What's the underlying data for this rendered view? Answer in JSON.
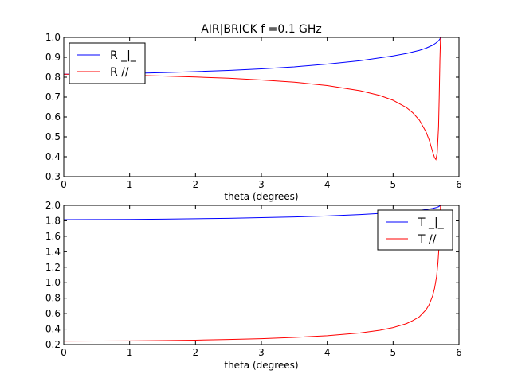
{
  "chart_data": [
    {
      "type": "line",
      "title": "AIR|BRICK f =0.1 GHz",
      "xlabel": "theta (degrees)",
      "ylabel": "",
      "xlim": [
        0,
        6
      ],
      "ylim": [
        0.3,
        1.0
      ],
      "xticks": [
        "0",
        "1",
        "2",
        "3",
        "4",
        "5",
        "6"
      ],
      "yticks": [
        "0.3",
        "0.4",
        "0.5",
        "0.6",
        "0.7",
        "0.8",
        "0.9",
        "1.0"
      ],
      "grid": false,
      "legend": "upper-left",
      "series": [
        {
          "name": "R _|_",
          "color": "#0000ff",
          "x": [
            0,
            0.5,
            1.0,
            1.5,
            2.0,
            2.5,
            3.0,
            3.5,
            4.0,
            4.5,
            5.0,
            5.2,
            5.4,
            5.5,
            5.6,
            5.65,
            5.69,
            5.71,
            5.72
          ],
          "y": [
            0.815,
            0.817,
            0.819,
            0.823,
            0.828,
            0.834,
            0.842,
            0.852,
            0.866,
            0.883,
            0.907,
            0.919,
            0.935,
            0.946,
            0.961,
            0.972,
            0.983,
            0.992,
            1.0
          ]
        },
        {
          "name": "R //",
          "color": "#ff0000",
          "x": [
            0,
            0.5,
            1.0,
            1.5,
            2.0,
            2.5,
            3.0,
            3.5,
            4.0,
            4.5,
            4.8,
            5.0,
            5.2,
            5.3,
            5.4,
            5.5,
            5.55,
            5.6,
            5.63,
            5.65,
            5.67,
            5.69,
            5.7,
            5.71,
            5.72
          ],
          "y": [
            0.815,
            0.813,
            0.81,
            0.806,
            0.801,
            0.795,
            0.786,
            0.775,
            0.758,
            0.732,
            0.708,
            0.684,
            0.648,
            0.621,
            0.584,
            0.525,
            0.482,
            0.425,
            0.395,
            0.386,
            0.42,
            0.55,
            0.7,
            0.88,
            1.0
          ]
        }
      ]
    },
    {
      "type": "line",
      "title": "",
      "xlabel": "theta (degrees)",
      "ylabel": "",
      "xlim": [
        0,
        6
      ],
      "ylim": [
        0.2,
        2.0
      ],
      "xticks": [
        "0",
        "1",
        "2",
        "3",
        "4",
        "5",
        "6"
      ],
      "yticks": [
        "0.2",
        "0.4",
        "0.6",
        "0.8",
        "1.0",
        "1.2",
        "1.4",
        "1.6",
        "1.8",
        "2.0"
      ],
      "grid": false,
      "legend": "upper-right",
      "series": [
        {
          "name": "T _|_",
          "color": "#0000ff",
          "x": [
            0,
            0.5,
            1.0,
            1.5,
            2.0,
            2.5,
            3.0,
            3.5,
            4.0,
            4.5,
            5.0,
            5.2,
            5.4,
            5.5,
            5.6,
            5.65,
            5.69,
            5.72
          ],
          "y": [
            1.815,
            1.816,
            1.818,
            1.821,
            1.826,
            1.832,
            1.84,
            1.85,
            1.863,
            1.881,
            1.905,
            1.918,
            1.935,
            1.946,
            1.96,
            1.97,
            1.982,
            2.0
          ]
        },
        {
          "name": "T //",
          "color": "#ff0000",
          "x": [
            0,
            0.5,
            1.0,
            1.5,
            2.0,
            2.5,
            3.0,
            3.5,
            4.0,
            4.5,
            4.8,
            5.0,
            5.2,
            5.3,
            5.4,
            5.5,
            5.55,
            5.6,
            5.63,
            5.66,
            5.68,
            5.7,
            5.71,
            5.72
          ],
          "y": [
            0.245,
            0.246,
            0.248,
            0.252,
            0.257,
            0.265,
            0.276,
            0.292,
            0.315,
            0.35,
            0.385,
            0.42,
            0.47,
            0.51,
            0.56,
            0.65,
            0.72,
            0.83,
            0.93,
            1.08,
            1.25,
            1.5,
            1.7,
            2.0
          ]
        }
      ]
    }
  ]
}
